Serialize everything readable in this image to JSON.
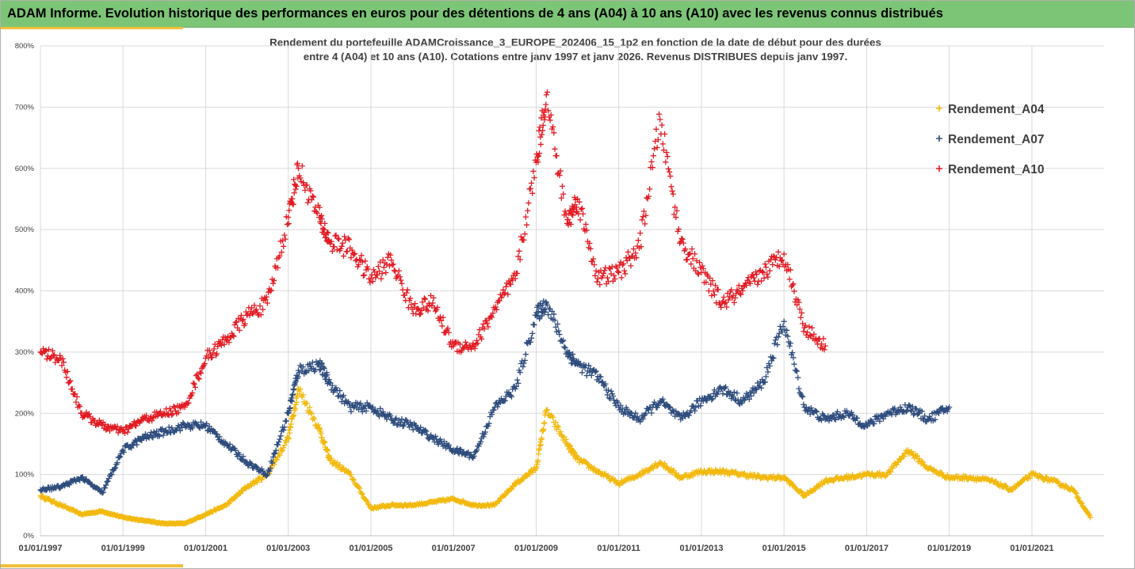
{
  "header": {
    "title": "ADAM Informe. Evolution historique des performances en euros pour des détentions de 4 ans (A04) à 10 ans (A10) avec les revenus connus distribués"
  },
  "colors": {
    "banner": "#7cc576",
    "accent": "#f2c037",
    "A04": "#f2b90f",
    "A07": "#2e4c7d",
    "A10": "#e21b23",
    "grid": "#d9d9d9"
  },
  "chart_data": {
    "type": "scatter",
    "title_line1": "Rendement du portefeuille ADAMCroissance_3_EUROPE_202406_15_1p2  en fonction de la date de début pour des durées",
    "title_line2": "entre 4 (A04) et 10 ans (A10). Cotations entre janv 1997 et janv 2026. Revenus DISTRIBUES depuis janv 1997.",
    "xlabel": "",
    "ylabel": "",
    "x_range": [
      "1997-01-01",
      "2022-10-01"
    ],
    "ylim": [
      0,
      800
    ],
    "y_ticks": [
      0,
      100,
      200,
      300,
      400,
      500,
      600,
      700,
      800
    ],
    "y_tick_labels": [
      "0%",
      "100%",
      "200%",
      "300%",
      "400%",
      "500%",
      "600%",
      "700%",
      "800%"
    ],
    "x_tick_labels": [
      "01/01/1997",
      "01/01/1999",
      "01/01/2001",
      "01/01/2003",
      "01/01/2005",
      "01/01/2007",
      "01/01/2009",
      "01/01/2011",
      "01/01/2013",
      "01/01/2015",
      "01/01/2017",
      "01/01/2019",
      "01/01/2021"
    ],
    "grid": true,
    "legend_position": "top-right",
    "marker": "+",
    "series": [
      {
        "name": "Rendement_A04",
        "color": "#f2b90f",
        "x": [
          "1997-01",
          "1997-07",
          "1998-01",
          "1998-07",
          "1999-01",
          "1999-07",
          "2000-01",
          "2000-07",
          "2001-01",
          "2001-07",
          "2002-01",
          "2002-07",
          "2003-01",
          "2003-04",
          "2003-10",
          "2004-01",
          "2004-07",
          "2005-01",
          "2005-07",
          "2006-01",
          "2006-07",
          "2007-01",
          "2007-07",
          "2008-01",
          "2008-07",
          "2009-01",
          "2009-04",
          "2009-10",
          "2010-01",
          "2010-07",
          "2011-01",
          "2011-07",
          "2012-01",
          "2012-07",
          "2013-01",
          "2013-07",
          "2014-01",
          "2014-07",
          "2015-01",
          "2015-07",
          "2016-01",
          "2016-07",
          "2017-01",
          "2017-07",
          "2018-01",
          "2018-07",
          "2019-01",
          "2019-07",
          "2020-01",
          "2020-07",
          "2021-01",
          "2021-07",
          "2022-01",
          "2022-06"
        ],
        "values": [
          65,
          50,
          35,
          40,
          30,
          25,
          20,
          20,
          35,
          50,
          80,
          100,
          160,
          240,
          175,
          125,
          100,
          45,
          50,
          50,
          55,
          60,
          50,
          50,
          85,
          110,
          205,
          150,
          125,
          105,
          85,
          100,
          120,
          95,
          105,
          105,
          100,
          95,
          95,
          65,
          90,
          95,
          100,
          100,
          140,
          110,
          95,
          95,
          90,
          75,
          100,
          90,
          75,
          30
        ]
      },
      {
        "name": "Rendement_A07",
        "color": "#2e4c7d",
        "x": [
          "1997-01",
          "1997-07",
          "1998-01",
          "1998-07",
          "1999-01",
          "1999-07",
          "2000-01",
          "2000-07",
          "2001-01",
          "2001-07",
          "2002-01",
          "2002-07",
          "2003-01",
          "2003-04",
          "2003-10",
          "2004-01",
          "2004-07",
          "2005-01",
          "2005-07",
          "2006-01",
          "2006-07",
          "2007-01",
          "2007-07",
          "2008-01",
          "2008-07",
          "2009-01",
          "2009-04",
          "2009-10",
          "2010-01",
          "2010-07",
          "2011-01",
          "2011-07",
          "2012-01",
          "2012-07",
          "2013-01",
          "2013-07",
          "2014-01",
          "2014-07",
          "2015-01",
          "2015-07",
          "2016-01",
          "2016-07",
          "2017-01",
          "2017-07",
          "2018-01",
          "2018-07",
          "2019-01"
        ],
        "values": [
          75,
          80,
          95,
          70,
          140,
          160,
          170,
          180,
          180,
          150,
          120,
          100,
          200,
          270,
          280,
          250,
          210,
          210,
          190,
          180,
          160,
          140,
          130,
          210,
          240,
          360,
          380,
          300,
          280,
          260,
          210,
          190,
          220,
          190,
          220,
          240,
          220,
          250,
          350,
          210,
          190,
          200,
          180,
          200,
          210,
          190,
          210
        ]
      },
      {
        "name": "Rendement_A10",
        "color": "#e21b23",
        "x": [
          "1997-01",
          "1997-07",
          "1998-01",
          "1998-07",
          "1999-01",
          "1999-07",
          "2000-01",
          "2000-07",
          "2001-01",
          "2001-07",
          "2002-01",
          "2002-07",
          "2003-01",
          "2003-04",
          "2003-10",
          "2004-01",
          "2004-07",
          "2005-01",
          "2005-07",
          "2006-01",
          "2006-07",
          "2007-01",
          "2007-07",
          "2008-01",
          "2008-07",
          "2009-01",
          "2009-04",
          "2009-10",
          "2010-01",
          "2010-07",
          "2011-01",
          "2011-07",
          "2012-01",
          "2012-07",
          "2013-01",
          "2013-07",
          "2014-01",
          "2014-07",
          "2015-01",
          "2015-07",
          "2016-01"
        ],
        "values": [
          300,
          290,
          200,
          180,
          170,
          190,
          200,
          210,
          290,
          320,
          360,
          380,
          520,
          600,
          520,
          480,
          470,
          420,
          450,
          370,
          380,
          310,
          310,
          370,
          420,
          610,
          720,
          510,
          550,
          420,
          430,
          470,
          680,
          480,
          430,
          380,
          400,
          430,
          460,
          340,
          310
        ]
      }
    ]
  }
}
